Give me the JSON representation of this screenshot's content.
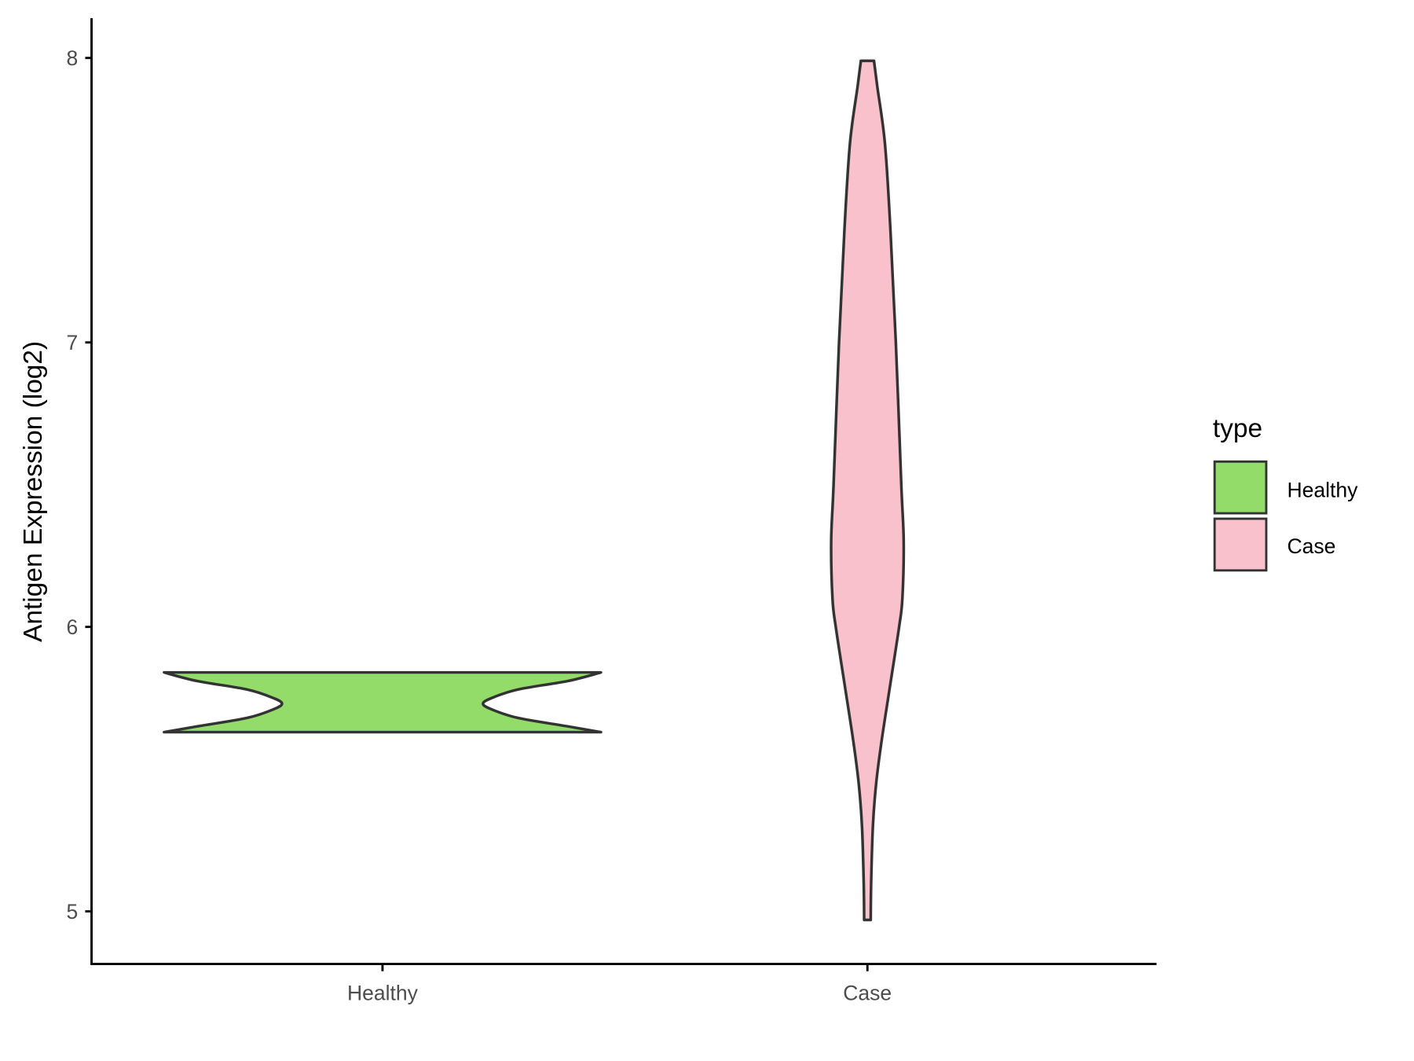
{
  "chart_data": {
    "type": "violin",
    "title": "",
    "xlabel": "",
    "ylabel": "Antigen Expression (log2)",
    "ylim": [
      4.8,
      8.14
    ],
    "yticks": [
      5,
      6,
      7,
      8
    ],
    "ytick_labels": [
      "5",
      "6",
      "7",
      "8"
    ],
    "categories": [
      "Healthy",
      "Case"
    ],
    "grid": false,
    "legend": {
      "title": "type",
      "position": "right",
      "entries": [
        "Healthy",
        "Case"
      ]
    },
    "series": [
      {
        "name": "Healthy",
        "color": "#93DC6A",
        "profile": [
          [
            5.63,
            1.0
          ],
          [
            5.65,
            0.85
          ],
          [
            5.68,
            0.62
          ],
          [
            5.71,
            0.5
          ],
          [
            5.73,
            0.46
          ],
          [
            5.75,
            0.5
          ],
          [
            5.78,
            0.62
          ],
          [
            5.81,
            0.85
          ],
          [
            5.84,
            1.0
          ]
        ]
      },
      {
        "name": "Case",
        "color": "#F8C1CB",
        "profile": [
          [
            4.97,
            0.015
          ],
          [
            5.1,
            0.017
          ],
          [
            5.3,
            0.025
          ],
          [
            5.45,
            0.04
          ],
          [
            5.6,
            0.065
          ],
          [
            5.8,
            0.105
          ],
          [
            6.0,
            0.145
          ],
          [
            6.1,
            0.16
          ],
          [
            6.3,
            0.166
          ],
          [
            6.5,
            0.155
          ],
          [
            7.0,
            0.13
          ],
          [
            7.4,
            0.105
          ],
          [
            7.7,
            0.08
          ],
          [
            7.9,
            0.045
          ],
          [
            7.99,
            0.03
          ]
        ]
      }
    ],
    "outline_color": "#333333"
  }
}
